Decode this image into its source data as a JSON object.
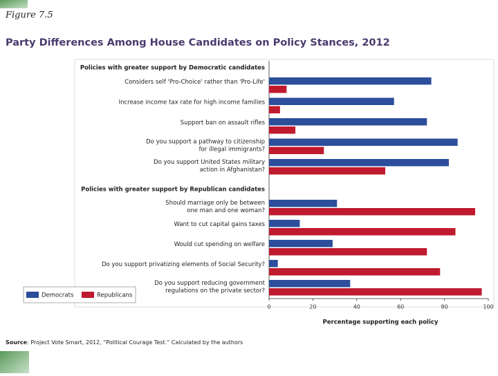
{
  "figure_label": "Figure 7.5",
  "chart_data": {
    "type": "bar",
    "orientation": "horizontal",
    "title": "Party Differences Among House Candidates on Policy Stances, 2012",
    "group_titles": [
      "Policies with greater support by Democratic candidates",
      "Policies with greater support by Republican candidates"
    ],
    "categories": [
      "Considers self 'Pro-Choice' rather than 'Pro-Life'",
      "Increase income tax rate for high income families",
      "Support ban on assault rifles",
      "Do you support a pathway to citizenship\nfor illegal immigrants?",
      "Do you support United States military\naction in Afghanistan?",
      "Should marriage only be between\none man and one woman?",
      "Want to cut capital gains taxes",
      "Would cut spending on welfare",
      "Do you support privatizing elements of Social Security?",
      "Do you support reducing government\nregulations on the private sector?"
    ],
    "series": [
      {
        "name": "Democrats",
        "color": "#2c4e9b",
        "values": [
          74,
          57,
          72,
          86,
          82,
          31,
          14,
          29,
          4,
          37
        ]
      },
      {
        "name": "Republicans",
        "color": "#c01a2e",
        "values": [
          8,
          5,
          12,
          25,
          53,
          94,
          85,
          72,
          78,
          97
        ]
      }
    ],
    "xlim": [
      0,
      100
    ],
    "xticks": [
      0,
      20,
      40,
      60,
      80,
      100
    ],
    "xlabel": "Percentage supporting each policy",
    "legend": "lower left"
  },
  "source_label": "Source",
  "source_text": ": Project Vote Smart, 2012, “Political Courage Test.” Calculated by the authors"
}
